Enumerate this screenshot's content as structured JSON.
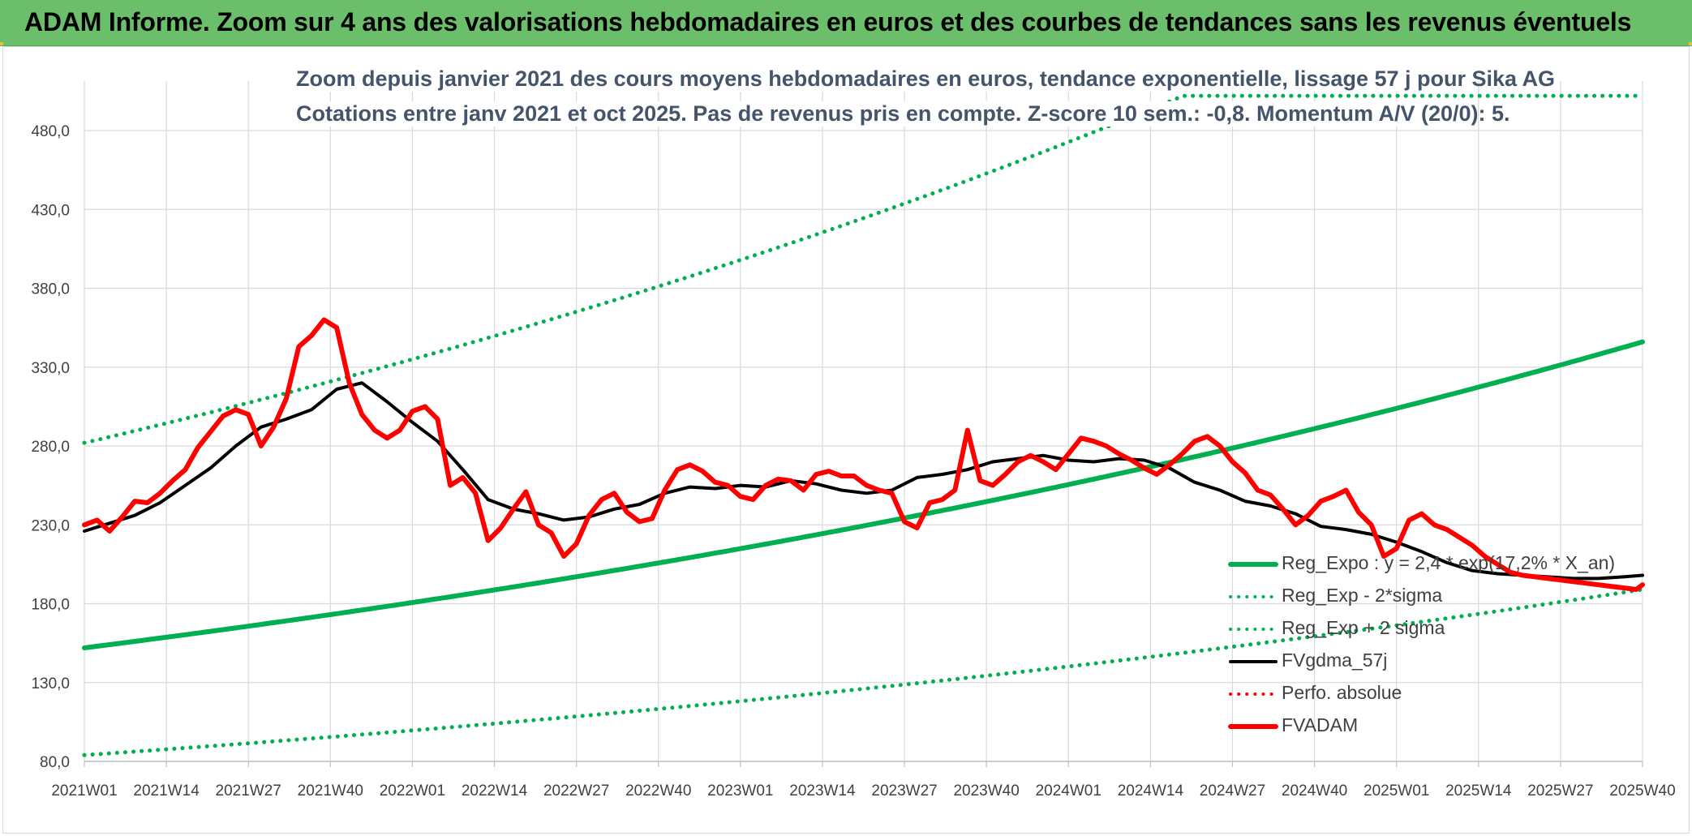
{
  "header": {
    "title": "ADAM Informe. Zoom sur 4 ans des valorisations hebdomadaires en euros et des courbes de tendances sans les revenus éventuels"
  },
  "chart_data": {
    "type": "line",
    "title": "Zoom depuis janvier 2021 des cours moyens hebdomadaires en euros, tendance exponentielle, lissage 57 j pour Sika AG",
    "subtitle": "Cotations entre janv 2021 et oct 2025. Pas de revenus pris en compte. Z-score 10 sem.: -0,8. Momentum A/V (20/0): 5.",
    "xlabel": "",
    "ylabel": "",
    "ylim": [
      80,
      500
    ],
    "grid": true,
    "y_ticks": [
      "80,0",
      "130,0",
      "180,0",
      "230,0",
      "280,0",
      "330,0",
      "380,0",
      "430,0",
      "480,0"
    ],
    "y_tick_values": [
      80,
      130,
      180,
      230,
      280,
      330,
      380,
      430,
      480
    ],
    "x_tick_labels": [
      "2021W01",
      "2021W14",
      "2021W27",
      "2021W40",
      "2022W01",
      "2022W14",
      "2022W27",
      "2022W40",
      "2023W01",
      "2023W14",
      "2023W27",
      "2023W40",
      "2024W01",
      "2024W14",
      "2024W27",
      "2024W40",
      "2025W01",
      "2025W14",
      "2025W27",
      "2025W40"
    ],
    "x_range_weeks": [
      0,
      247
    ],
    "series": [
      {
        "name": "Reg_Expo : y = 2,4 * exp(17,2% *  X_an)",
        "style": "solid-thick",
        "color": "#00b050",
        "x": [
          0,
          247
        ],
        "values": [
          152,
          346
        ],
        "curve": "exponential"
      },
      {
        "name": "Reg_Exp - 2*sigma",
        "style": "dotted",
        "color": "#00b050",
        "x": [
          0,
          247
        ],
        "values": [
          84,
          189
        ],
        "curve": "exponential"
      },
      {
        "name": "Reg_Exp + 2 sigma",
        "style": "dotted",
        "color": "#00b050",
        "x": [
          0,
          160,
          247
        ],
        "values": [
          282,
          479,
          502
        ],
        "curve": "exponential-capped",
        "cap": 502
      },
      {
        "name": "FVgdma_57j",
        "style": "solid",
        "color": "#000000",
        "x": [
          0,
          4,
          8,
          12,
          16,
          20,
          24,
          28,
          32,
          36,
          40,
          44,
          48,
          52,
          56,
          60,
          64,
          68,
          72,
          76,
          80,
          84,
          88,
          92,
          96,
          100,
          104,
          108,
          112,
          116,
          120,
          124,
          128,
          132,
          136,
          140,
          144,
          148,
          152,
          156,
          160,
          164,
          168,
          172,
          176,
          180,
          184,
          188,
          192,
          196,
          200,
          204,
          208,
          212,
          216,
          220,
          224,
          228,
          232,
          236,
          240,
          244,
          247
        ],
        "values": [
          226,
          231,
          236,
          244,
          255,
          266,
          280,
          292,
          297,
          303,
          316,
          320,
          308,
          295,
          283,
          265,
          246,
          240,
          237,
          233,
          235,
          240,
          243,
          250,
          254,
          253,
          255,
          254,
          258,
          256,
          252,
          250,
          252,
          260,
          262,
          265,
          270,
          272,
          274,
          271,
          270,
          272,
          271,
          266,
          257,
          252,
          245,
          242,
          237,
          229,
          227,
          224,
          219,
          213,
          206,
          201,
          199,
          198,
          197,
          196,
          196,
          197,
          198
        ]
      },
      {
        "name": "Perfo. absolue",
        "style": "dotted",
        "color": "#ff0000",
        "x": [],
        "values": []
      },
      {
        "name": "FVADAM",
        "style": "solid-thick",
        "color": "#ff0000",
        "x": [
          0,
          2,
          4,
          6,
          8,
          10,
          12,
          14,
          16,
          18,
          20,
          22,
          24,
          26,
          28,
          30,
          32,
          34,
          36,
          38,
          40,
          42,
          44,
          46,
          48,
          50,
          52,
          54,
          56,
          58,
          60,
          62,
          64,
          66,
          68,
          70,
          72,
          74,
          76,
          78,
          80,
          82,
          84,
          86,
          88,
          90,
          92,
          94,
          96,
          98,
          100,
          102,
          104,
          106,
          108,
          110,
          112,
          114,
          116,
          118,
          120,
          122,
          124,
          126,
          128,
          130,
          132,
          134,
          136,
          138,
          140,
          142,
          144,
          146,
          148,
          150,
          152,
          154,
          156,
          158,
          160,
          162,
          164,
          166,
          168,
          170,
          172,
          174,
          176,
          178,
          180,
          182,
          184,
          186,
          188,
          190,
          192,
          194,
          196,
          198,
          200,
          202,
          204,
          206,
          208,
          210,
          212,
          214,
          216,
          218,
          220,
          222,
          224,
          226,
          228,
          230,
          232,
          234,
          236,
          238,
          240,
          242,
          244,
          246,
          247
        ],
        "values": [
          230,
          233,
          226,
          235,
          245,
          244,
          250,
          258,
          265,
          279,
          289,
          299,
          303,
          300,
          280,
          292,
          310,
          343,
          350,
          360,
          355,
          320,
          300,
          290,
          285,
          290,
          302,
          305,
          297,
          255,
          260,
          250,
          220,
          228,
          240,
          251,
          230,
          225,
          210,
          218,
          236,
          246,
          250,
          238,
          232,
          234,
          252,
          265,
          268,
          264,
          257,
          255,
          248,
          246,
          255,
          259,
          258,
          252,
          262,
          264,
          261,
          261,
          255,
          252,
          250,
          232,
          228,
          244,
          246,
          252,
          290,
          258,
          255,
          262,
          270,
          274,
          270,
          265,
          275,
          285,
          283,
          280,
          275,
          271,
          266,
          262,
          268,
          275,
          283,
          286,
          280,
          270,
          263,
          252,
          249,
          240,
          230,
          236,
          245,
          248,
          252,
          238,
          230,
          210,
          215,
          233,
          237,
          230,
          227,
          222,
          217,
          210,
          205,
          200,
          198,
          197,
          196,
          195,
          194,
          193,
          192,
          191,
          190,
          189,
          192
        ]
      }
    ]
  },
  "colors": {
    "header_bg": "#6cbf6a",
    "green": "#00b050",
    "red": "#ff0000",
    "black": "#000000",
    "axis_text": "#404040",
    "subtitle_text": "#44546a"
  }
}
